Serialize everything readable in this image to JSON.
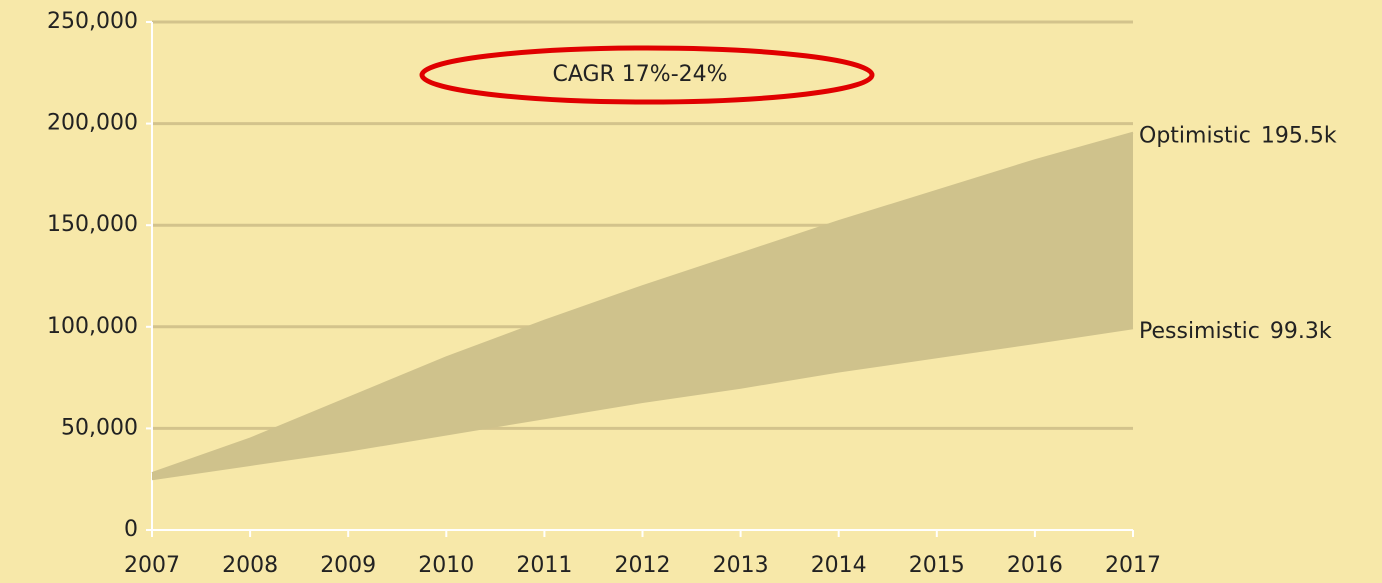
{
  "chart_data": {
    "type": "band",
    "x": [
      2007,
      2008,
      2009,
      2010,
      2011,
      2012,
      2013,
      2014,
      2015,
      2016,
      2017
    ],
    "series": [
      {
        "name": "Optimistic",
        "color": "#cfc28c",
        "values": [
          28000,
          45000,
          65000,
          85000,
          103000,
          120000,
          136000,
          152000,
          167000,
          182000,
          195500
        ],
        "value_labels": [
          null,
          null,
          null,
          null,
          null,
          null,
          null,
          null,
          null,
          null,
          "195.5k"
        ]
      },
      {
        "name": "Pessimistic",
        "color": "#cfc28c",
        "values": [
          25000,
          32000,
          39000,
          47000,
          55000,
          63000,
          70000,
          78000,
          85000,
          92000,
          99300
        ],
        "value_labels": [
          null,
          null,
          null,
          null,
          null,
          null,
          null,
          null,
          null,
          null,
          "99.3k"
        ]
      }
    ],
    "annotation": "CAGR 17%-24%",
    "xlim": [
      2007,
      2017
    ],
    "xticks": [
      2007,
      2008,
      2009,
      2010,
      2011,
      2012,
      2013,
      2014,
      2015,
      2016,
      2017
    ],
    "ylim": [
      0,
      250000
    ],
    "yticks": [
      0,
      {
        "value": 50000,
        "label": "50,000"
      },
      {
        "value": 100000,
        "label": "100,000"
      },
      {
        "value": 150000,
        "label": "150,000"
      },
      {
        "value": 200000,
        "label": "200,000"
      },
      {
        "value": 250000,
        "label": "250,000"
      }
    ],
    "grid": true
  }
}
